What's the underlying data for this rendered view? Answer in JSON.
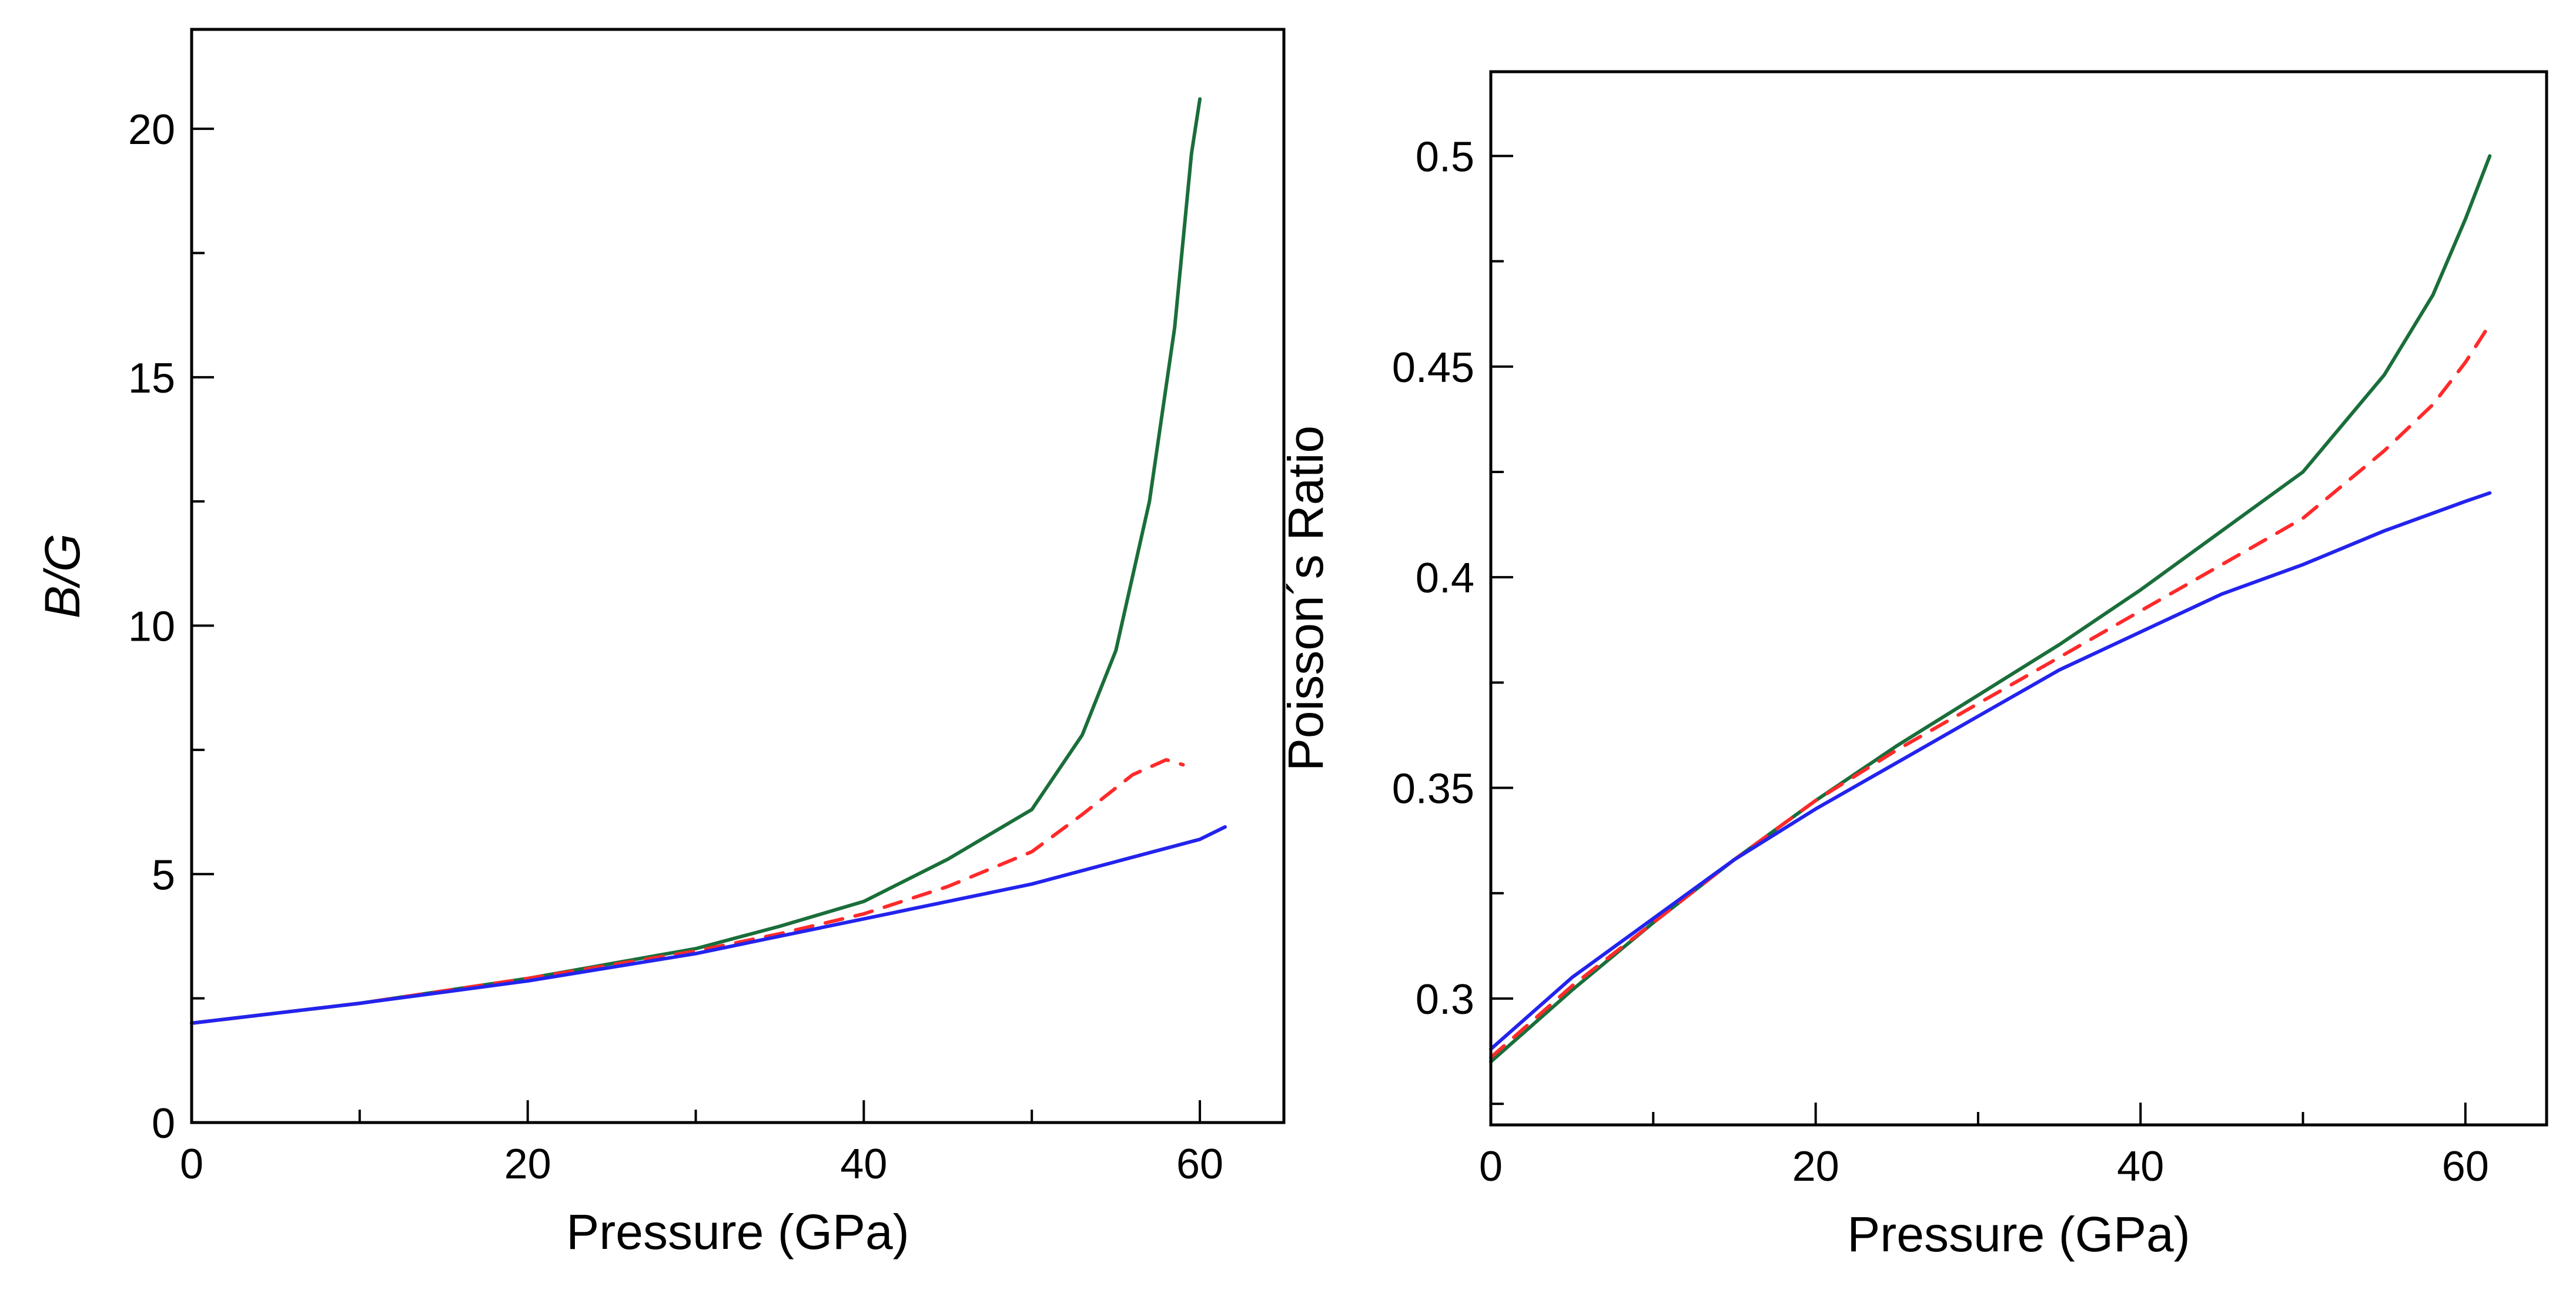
{
  "chart_data": [
    {
      "type": "line",
      "title": "",
      "xlabel": "Pressure (GPa)",
      "ylabel": "B/G",
      "xlim": [
        0,
        65
      ],
      "ylim": [
        0,
        22
      ],
      "xticks": [
        0,
        20,
        40,
        60
      ],
      "xtick_labels": [
        "0",
        "20",
        "40",
        "60"
      ],
      "x_minor_ticks": [
        10,
        30,
        50
      ],
      "yticks": [
        0,
        5,
        10,
        15,
        20
      ],
      "ytick_labels": [
        "0",
        "5",
        "10",
        "15",
        "20"
      ],
      "y_minor_ticks": [
        2.5,
        7.5,
        12.5,
        17.5
      ],
      "grid": false,
      "series": [
        {
          "name": "green (solid)",
          "color": "#1a6e3a",
          "dash": "solid",
          "x": [
            0,
            10,
            20,
            30,
            35,
            40,
            45,
            50,
            53,
            55,
            57,
            58.5,
            59.5,
            60
          ],
          "y": [
            2.0,
            2.4,
            2.9,
            3.5,
            3.95,
            4.45,
            5.3,
            6.3,
            7.8,
            9.5,
            12.5,
            16.0,
            19.5,
            20.6
          ]
        },
        {
          "name": "red (dashed)",
          "color": "#ff2a2a",
          "dash": "dashed",
          "x": [
            0,
            10,
            20,
            30,
            35,
            40,
            45,
            50,
            53,
            56,
            58,
            59
          ],
          "y": [
            2.0,
            2.4,
            2.9,
            3.45,
            3.8,
            4.2,
            4.75,
            5.45,
            6.2,
            7.0,
            7.3,
            7.2
          ]
        },
        {
          "name": "blue (solid)",
          "color": "#2323ee",
          "dash": "solid",
          "x": [
            0,
            10,
            20,
            30,
            40,
            50,
            55,
            60,
            61.5
          ],
          "y": [
            2.0,
            2.4,
            2.85,
            3.4,
            4.1,
            4.8,
            5.25,
            5.7,
            5.95
          ]
        }
      ]
    },
    {
      "type": "line",
      "title": "",
      "xlabel": "Pressure (GPa)",
      "ylabel": "Poisson´s Ratio",
      "xlim": [
        0,
        65
      ],
      "ylim": [
        0.27,
        0.52
      ],
      "xticks": [
        0,
        20,
        40,
        60
      ],
      "xtick_labels": [
        "0",
        "20",
        "40",
        "60"
      ],
      "x_minor_ticks": [
        10,
        30,
        50
      ],
      "yticks": [
        0.3,
        0.35,
        0.4,
        0.45,
        0.5
      ],
      "ytick_labels": [
        "0.3",
        "0.35",
        "0.4",
        "0.45",
        "0.5"
      ],
      "y_minor_ticks": [
        0.275,
        0.325,
        0.375,
        0.425,
        0.475
      ],
      "grid": false,
      "series": [
        {
          "name": "green (solid)",
          "color": "#1a6e3a",
          "dash": "solid",
          "x": [
            0,
            5,
            10,
            15,
            20,
            25,
            30,
            35,
            40,
            45,
            50,
            55,
            58,
            60,
            61.5
          ],
          "y": [
            0.285,
            0.302,
            0.318,
            0.333,
            0.347,
            0.36,
            0.372,
            0.384,
            0.397,
            0.411,
            0.425,
            0.448,
            0.467,
            0.485,
            0.5
          ]
        },
        {
          "name": "red (dashed)",
          "color": "#ff2a2a",
          "dash": "dashed",
          "x": [
            0,
            5,
            10,
            15,
            20,
            25,
            30,
            35,
            40,
            45,
            50,
            55,
            58,
            60,
            61.5
          ],
          "y": [
            0.286,
            0.303,
            0.318,
            0.333,
            0.347,
            0.359,
            0.37,
            0.381,
            0.392,
            0.403,
            0.414,
            0.43,
            0.441,
            0.451,
            0.46
          ]
        },
        {
          "name": "blue (solid)",
          "color": "#2323ee",
          "dash": "solid",
          "x": [
            0,
            5,
            10,
            15,
            20,
            25,
            30,
            35,
            40,
            45,
            50,
            55,
            60,
            61.5
          ],
          "y": [
            0.288,
            0.305,
            0.319,
            0.333,
            0.345,
            0.356,
            0.367,
            0.378,
            0.387,
            0.396,
            0.403,
            0.411,
            0.418,
            0.42
          ]
        }
      ]
    }
  ]
}
